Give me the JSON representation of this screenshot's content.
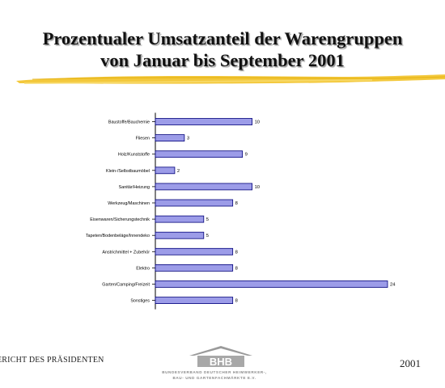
{
  "title_line1": "Prozentualer Umsatzanteil der Warengruppen",
  "title_line2": "von Januar bis September 2001",
  "footer": {
    "left_text": "ERICHT DES PRÄSIDENTEN",
    "year": "2001",
    "logo_text": "BHB",
    "logo_sub1": "BUNDESVERBAND DEUTSCHER HEIMWERKER-,",
    "logo_sub2": "BAU- UND GARTENFACHMÄRKTE E.V."
  },
  "colors": {
    "bar_fill": "#9c9ce8",
    "bar_stroke": "#00007a",
    "swoosh": "#f0c020",
    "logo": "#9a9a9a"
  },
  "chart_data": {
    "type": "bar",
    "orientation": "horizontal",
    "categories": [
      "Baustoffe/Bauchemie",
      "Fliesen",
      "Holz/Kunststoffe",
      "Klein-/Selbstbaumöbel",
      "Sanitär/Heizung",
      "Werkzeug/Maschinen",
      "Eisenwaren/Sicherungstechnik",
      "Tapeten/Bodenbeläge/Innendeko",
      "Anstrichmittel + Zubehör",
      "Elektro",
      "Garten/Camping/Freizeit",
      "Sonstiges"
    ],
    "values": [
      10,
      3,
      9,
      2,
      10,
      8,
      5,
      5,
      8,
      8,
      24,
      8
    ],
    "xlim": [
      0,
      24
    ],
    "title": "",
    "xlabel": "",
    "ylabel": "",
    "grid": false,
    "legend": "none"
  }
}
